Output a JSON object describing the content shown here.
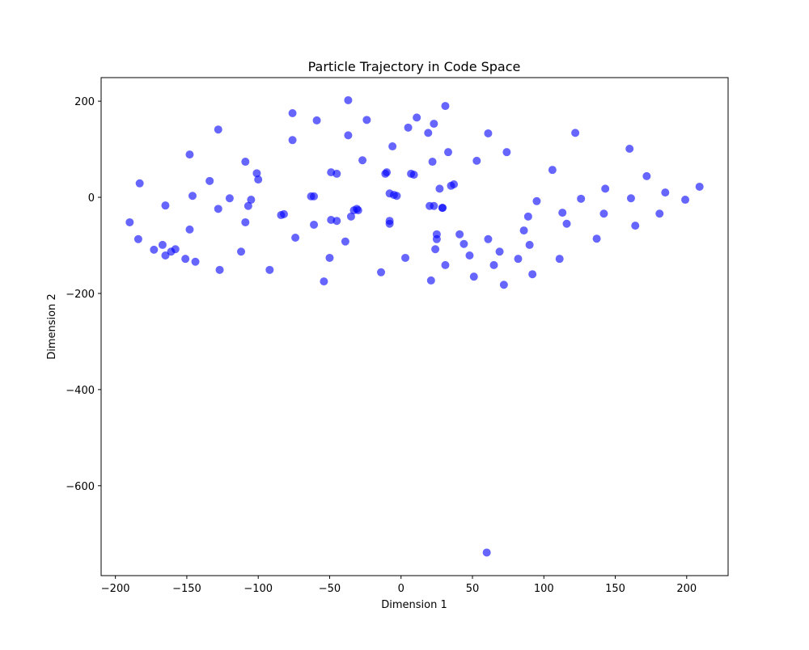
{
  "chart_data": {
    "type": "scatter",
    "title": "Particle Trajectory in Code Space",
    "x_label": "Dimension 1",
    "y_label": "Dimension 2",
    "color": "#0000ff",
    "alpha": 0.6,
    "x": [
      -190,
      -183,
      -184,
      -165,
      -173,
      -167,
      -165,
      -161,
      -158,
      -151,
      -148,
      -148,
      -146,
      -144,
      -134,
      -128,
      -128,
      -127,
      -120,
      -112,
      -109,
      -109,
      -107,
      -105,
      -101,
      -100,
      -92,
      -84,
      -82,
      -76,
      -76,
      -74,
      -63,
      -61,
      -61,
      -59,
      -54,
      -50,
      -49,
      -49,
      -45,
      -45,
      -39,
      -37,
      -37,
      -35,
      -33,
      -31,
      -30,
      -27,
      -24,
      -14,
      -11,
      -10,
      -8,
      -8,
      -8,
      -6,
      -5,
      -3,
      3,
      5,
      7,
      9,
      11,
      19,
      20,
      21,
      22,
      23,
      23,
      25,
      24,
      25,
      27,
      29,
      29,
      31,
      31,
      33,
      35,
      37,
      41,
      44,
      48,
      51,
      53,
      60,
      61,
      61,
      65,
      69,
      72,
      74,
      82,
      86,
      89,
      90,
      92,
      95,
      106,
      111,
      113,
      116,
      122,
      126,
      137,
      142,
      143,
      160,
      161,
      164,
      172,
      181,
      185,
      199,
      209
    ],
    "y": [
      -52,
      29,
      -87,
      -17,
      -109,
      -99,
      -121,
      -113,
      -108,
      -128,
      89,
      -67,
      3,
      -134,
      34,
      141,
      -24,
      -151,
      -2,
      -113,
      74,
      -52,
      -18,
      -5,
      50,
      37,
      -151,
      -37,
      -35,
      175,
      119,
      -84,
      2,
      2,
      -57,
      160,
      -175,
      -126,
      52,
      -47,
      49,
      -49,
      -92,
      202,
      129,
      -40,
      -27,
      -24,
      -27,
      77,
      161,
      -156,
      49,
      52,
      -49,
      -55,
      8,
      106,
      5,
      3,
      -126,
      145,
      49,
      47,
      166,
      134,
      -18,
      -173,
      74,
      153,
      -18,
      -77,
      -108,
      -87,
      18,
      -22,
      -22,
      190,
      -141,
      94,
      24,
      27,
      -77,
      -97,
      -121,
      -165,
      76,
      -739,
      133,
      -87,
      -141,
      -113,
      -182,
      94,
      -128,
      -69,
      -40,
      -99,
      -160,
      -8,
      57,
      -128,
      -32,
      -55,
      134,
      -3,
      -86,
      -34,
      18,
      101,
      -2,
      -59,
      44,
      -34,
      10,
      -5,
      22
    ],
    "xlim": [
      -210,
      229
    ],
    "ylim": [
      -787,
      249
    ],
    "xticks": [
      {
        "value": -200,
        "label": "−200"
      },
      {
        "value": -150,
        "label": "−150"
      },
      {
        "value": -100,
        "label": "−100"
      },
      {
        "value": -50,
        "label": "−50"
      },
      0,
      50,
      100,
      150,
      200
    ],
    "yticks": [
      {
        "value": -600,
        "label": "−600"
      },
      {
        "value": -400,
        "label": "−400"
      },
      {
        "value": -200,
        "label": "−200"
      },
      0,
      200
    ]
  }
}
